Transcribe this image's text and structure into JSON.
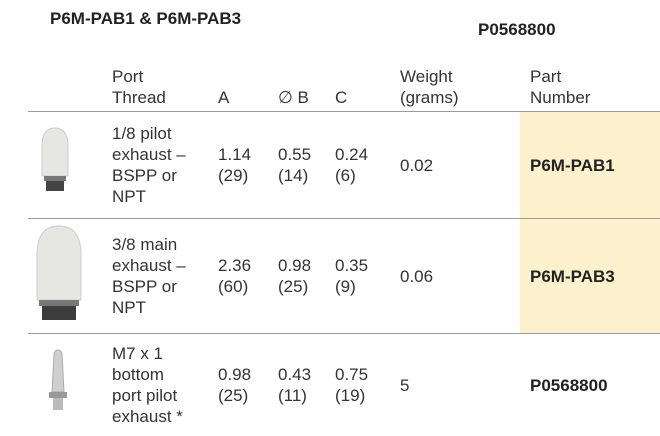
{
  "header": {
    "title_left": "P6M-PAB1 & P6M-PAB3",
    "title_right": "P0568800"
  },
  "table": {
    "columns": [
      [
        "Port",
        "Thread"
      ],
      [
        "A"
      ],
      [
        "∅ B"
      ],
      [
        "C"
      ],
      [
        "Weight",
        "(grams)"
      ],
      [
        "Part",
        "Number"
      ]
    ],
    "rows": [
      [
        [
          "1/8 pilot",
          "exhaust –",
          "BSPP or",
          "NPT"
        ],
        [
          "1.14",
          "(29)"
        ],
        [
          "0.55",
          "(14)"
        ],
        [
          "0.24",
          "(6)"
        ],
        [
          "0.02"
        ],
        [
          "P6M-PAB1"
        ]
      ],
      [
        [
          "3/8 main",
          "exhaust –",
          "BSPP or",
          "NPT"
        ],
        [
          "2.36",
          "(60)"
        ],
        [
          "0.98",
          "(25)"
        ],
        [
          "0.35",
          "(9)"
        ],
        [
          "0.06"
        ],
        [
          "P6M-PAB3"
        ]
      ],
      [
        [
          "M7 x 1",
          "bottom",
          "port pilot",
          "exhaust *"
        ],
        [
          "0.98",
          "(25)"
        ],
        [
          "0.43",
          "(11)"
        ],
        [
          "0.75",
          "(19)"
        ],
        [
          "5"
        ],
        [
          "P0568800"
        ]
      ]
    ]
  }
}
